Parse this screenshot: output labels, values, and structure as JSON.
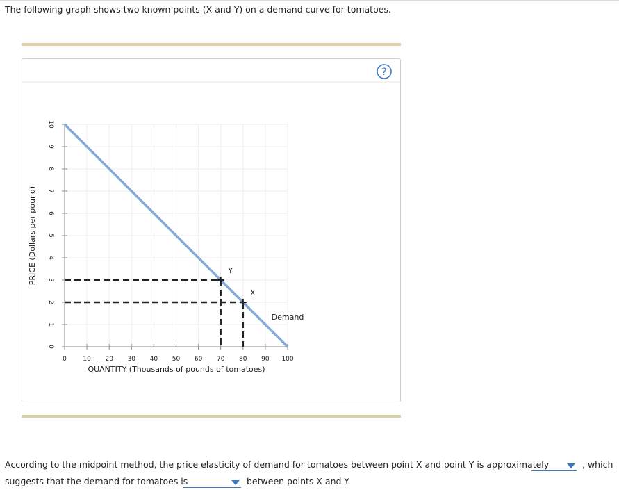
{
  "header": {
    "intro": "The following graph shows two known points (X and Y) on a demand curve for tomatoes."
  },
  "help": "?",
  "chart_data": {
    "type": "line",
    "x_label": "QUANTITY (Thousands of pounds of tomatoes)",
    "y_label": "PRICE (Dollars per pound)",
    "x": [
      0,
      100
    ],
    "series": [
      {
        "name": "Demand",
        "color": "#84a9d9",
        "values": [
          10,
          0
        ]
      }
    ],
    "points": [
      {
        "label": "Y",
        "x": 70,
        "y": 3
      },
      {
        "label": "X",
        "x": 80,
        "y": 2
      }
    ],
    "xlim": [
      0,
      100
    ],
    "ylim": [
      0,
      10
    ],
    "xticks": [
      0,
      10,
      20,
      30,
      40,
      50,
      60,
      70,
      80,
      90,
      100
    ],
    "yticks": [
      0,
      1,
      2,
      3,
      4,
      5,
      6,
      7,
      8,
      9,
      10
    ],
    "grid": true
  },
  "question": {
    "part1": "According to the midpoint method, the price elasticity of demand for tomatoes between point X and point Y is approximately",
    "part2": ", which",
    "part3": "suggests that the demand for tomatoes is",
    "part4": "between points X and Y."
  }
}
